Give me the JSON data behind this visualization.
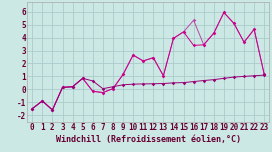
{
  "xlabel": "Windchill (Refroidissement éolien,°C)",
  "background_color": "#cce8e4",
  "grid_color": "#aacccc",
  "line_color_dark": "#990077",
  "line_color_mid": "#cc0088",
  "line_color_light": "#bb44aa",
  "xlim_min": -0.5,
  "xlim_max": 23.5,
  "ylim_min": -2.5,
  "ylim_max": 6.8,
  "yticks": [
    -2,
    -1,
    0,
    1,
    2,
    3,
    4,
    5,
    6
  ],
  "xticks": [
    0,
    1,
    2,
    3,
    4,
    5,
    6,
    7,
    8,
    9,
    10,
    11,
    12,
    13,
    14,
    15,
    16,
    17,
    18,
    19,
    20,
    21,
    22,
    23
  ],
  "series1_x": [
    0,
    1,
    2,
    3,
    4,
    5,
    6,
    7,
    8,
    9,
    10,
    11,
    12,
    13,
    14,
    15,
    16,
    17,
    18,
    19,
    20,
    21,
    22,
    23
  ],
  "series1_y": [
    -1.5,
    -0.9,
    -1.6,
    0.15,
    0.2,
    0.85,
    0.65,
    0.05,
    0.2,
    0.35,
    0.4,
    0.42,
    0.43,
    0.45,
    0.5,
    0.52,
    0.6,
    0.68,
    0.75,
    0.85,
    0.95,
    1.0,
    1.05,
    1.1
  ],
  "series2_x": [
    0,
    1,
    2,
    3,
    4,
    5,
    6,
    7,
    8,
    9,
    10,
    11,
    12,
    13,
    14,
    15,
    16,
    17,
    18,
    19,
    20,
    21,
    22,
    23
  ],
  "series2_y": [
    -1.5,
    -0.9,
    -1.6,
    0.15,
    0.2,
    0.85,
    -0.15,
    -0.25,
    0.05,
    1.15,
    2.65,
    2.2,
    2.45,
    1.05,
    3.95,
    4.45,
    3.4,
    3.45,
    4.35,
    5.95,
    5.1,
    3.65,
    4.65,
    1.15
  ],
  "series3_x": [
    0,
    1,
    2,
    3,
    4,
    5,
    6,
    7,
    8,
    9,
    10,
    11,
    12,
    13,
    14,
    15,
    16,
    17,
    18,
    19,
    20,
    21,
    22,
    23
  ],
  "series3_y": [
    -1.5,
    -0.9,
    -1.6,
    0.15,
    0.2,
    0.85,
    -0.15,
    -0.25,
    0.05,
    1.15,
    2.65,
    2.2,
    2.45,
    1.05,
    3.95,
    4.45,
    5.35,
    3.45,
    4.35,
    5.95,
    5.1,
    3.65,
    4.65,
    1.15
  ],
  "xlabel_fontsize": 6,
  "tick_fontsize": 5.5,
  "linewidth": 0.7,
  "markersize": 1.8
}
